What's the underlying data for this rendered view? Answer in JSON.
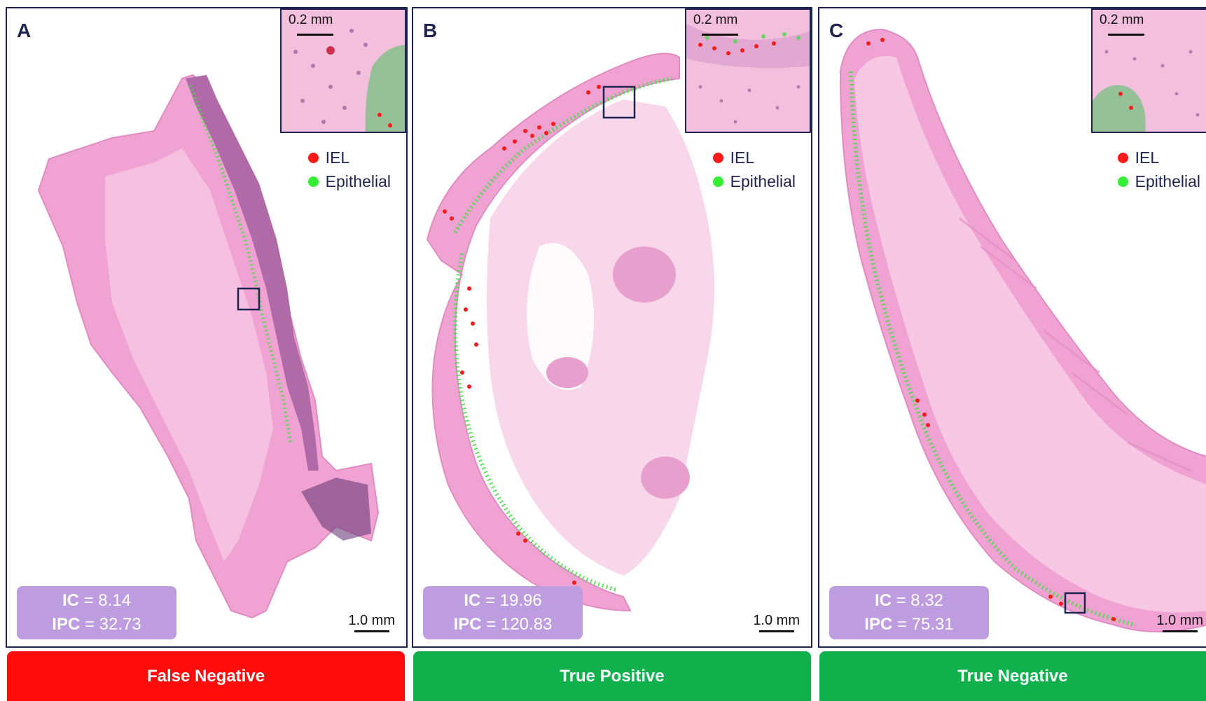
{
  "panels": [
    {
      "letter": "A",
      "inset_scale": "0.2 mm",
      "legend": [
        "IEL",
        "Epithelial"
      ],
      "ic_label": "IC",
      "ic_value": "= 8.14",
      "ipc_label": "IPC",
      "ipc_value": "= 32.73",
      "scale": "1.0 mm",
      "verdict": "False Negative"
    },
    {
      "letter": "B",
      "inset_scale": "0.2 mm",
      "legend": [
        "IEL",
        "Epithelial"
      ],
      "ic_label": "IC",
      "ic_value": "= 19.96",
      "ipc_label": "IPC",
      "ipc_value": "= 120.83",
      "scale": "1.0 mm",
      "verdict": "True Positive"
    },
    {
      "letter": "C",
      "inset_scale": "0.2 mm",
      "legend": [
        "IEL",
        "Epithelial"
      ],
      "ic_label": "IC",
      "ic_value": "= 8.32",
      "ipc_label": "IPC",
      "ipc_value": "= 75.31",
      "scale": "1.0 mm",
      "verdict": "True Negative"
    }
  ],
  "colors": {
    "border": "#1f2350",
    "iel_dot": "#ff1a1a",
    "epithelial_dot": "#33ee33",
    "stats_box": "#bd9de0",
    "false_negative": "#ff0d0d",
    "positive_negative_correct": "#10b14c",
    "tissue": "#f0a3d2",
    "tissue_dark": "#c97ab8"
  }
}
